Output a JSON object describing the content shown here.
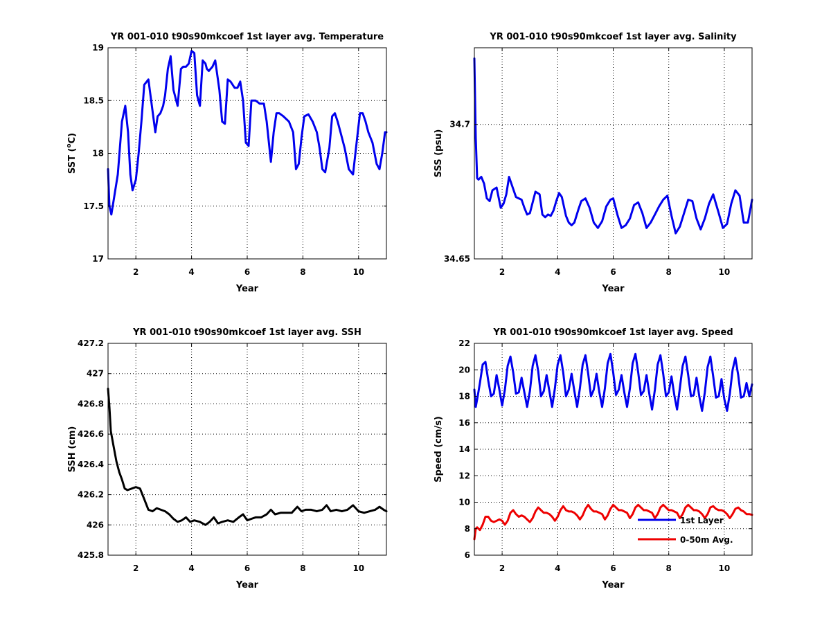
{
  "chart_data": [
    {
      "id": "temperature",
      "type": "line",
      "title": "YR 001-010 t90s90mkcoef 1st layer avg. Temperature",
      "xlabel": "Year",
      "ylabel": "SST (°C)",
      "ylabel_parts": {
        "pre": "SST (",
        "sup": "o",
        "post": "C)"
      },
      "xlim": [
        1,
        11
      ],
      "ylim": [
        17,
        19
      ],
      "xticks": [
        2,
        4,
        6,
        8,
        10
      ],
      "yticks": [
        17,
        17.5,
        18,
        18.5,
        19
      ],
      "ytick_labels": [
        "17",
        "17.5",
        "18",
        "18.5",
        "19"
      ],
      "grid": true,
      "series": [
        {
          "color": "#0000ee",
          "x": [
            1.0,
            1.05,
            1.12,
            1.2,
            1.35,
            1.5,
            1.62,
            1.72,
            1.8,
            1.88,
            2.0,
            2.1,
            2.2,
            2.3,
            2.45,
            2.6,
            2.7,
            2.78,
            2.88,
            2.98,
            3.05,
            3.15,
            3.25,
            3.35,
            3.5,
            3.62,
            3.7,
            3.8,
            3.9,
            4.0,
            4.1,
            4.2,
            4.3,
            4.4,
            4.5,
            4.55,
            4.62,
            4.75,
            4.85,
            5.0,
            5.1,
            5.2,
            5.3,
            5.4,
            5.55,
            5.65,
            5.75,
            5.85,
            5.95,
            6.05,
            6.15,
            6.3,
            6.45,
            6.6,
            6.7,
            6.85,
            6.95,
            7.05,
            7.15,
            7.3,
            7.5,
            7.65,
            7.75,
            7.85,
            7.95,
            8.05,
            8.2,
            8.35,
            8.5,
            8.6,
            8.7,
            8.8,
            8.95,
            9.05,
            9.15,
            9.25,
            9.35,
            9.5,
            9.65,
            9.8,
            9.95,
            10.05,
            10.15,
            10.25,
            10.35,
            10.5,
            10.65,
            10.75,
            10.85,
            10.95,
            11.0
          ],
          "y": [
            17.85,
            17.5,
            17.42,
            17.55,
            17.8,
            18.3,
            18.45,
            18.2,
            17.8,
            17.65,
            17.75,
            18.0,
            18.3,
            18.65,
            18.7,
            18.4,
            18.2,
            18.35,
            18.38,
            18.45,
            18.55,
            18.8,
            18.92,
            18.6,
            18.45,
            18.8,
            18.82,
            18.82,
            18.85,
            18.97,
            18.95,
            18.55,
            18.45,
            18.88,
            18.85,
            18.8,
            18.78,
            18.82,
            18.88,
            18.6,
            18.3,
            18.28,
            18.7,
            18.68,
            18.62,
            18.62,
            18.68,
            18.5,
            18.1,
            18.07,
            18.5,
            18.5,
            18.47,
            18.47,
            18.3,
            17.92,
            18.2,
            18.38,
            18.38,
            18.35,
            18.3,
            18.2,
            17.85,
            17.9,
            18.15,
            18.35,
            18.37,
            18.3,
            18.2,
            18.05,
            17.85,
            17.82,
            18.05,
            18.35,
            18.38,
            18.3,
            18.2,
            18.05,
            17.85,
            17.8,
            18.15,
            18.38,
            18.38,
            18.3,
            18.2,
            18.1,
            17.9,
            17.85,
            18.0,
            18.2,
            18.2
          ]
        }
      ]
    },
    {
      "id": "salinity",
      "type": "line",
      "title": "YR 001-010 t90s90mkcoef 1st layer avg. Salinity",
      "xlabel": "Year",
      "ylabel": "SSS (psu)",
      "xlim": [
        1,
        11
      ],
      "ylim": [
        34.65,
        34.7285
      ],
      "xticks": [
        2,
        4,
        6,
        8,
        10
      ],
      "yticks": [
        34.65,
        34.7
      ],
      "ytick_labels": [
        "34.65",
        "34.7"
      ],
      "grid": true,
      "series": [
        {
          "color": "#0000ee",
          "x": [
            1.0,
            1.05,
            1.1,
            1.15,
            1.25,
            1.35,
            1.45,
            1.55,
            1.65,
            1.8,
            1.95,
            2.05,
            2.15,
            2.25,
            2.35,
            2.5,
            2.6,
            2.7,
            2.8,
            2.9,
            3.0,
            3.1,
            3.2,
            3.35,
            3.45,
            3.55,
            3.65,
            3.75,
            3.85,
            3.95,
            4.05,
            4.15,
            4.3,
            4.4,
            4.5,
            4.6,
            4.75,
            4.85,
            5.0,
            5.15,
            5.3,
            5.45,
            5.6,
            5.75,
            5.9,
            6.0,
            6.15,
            6.3,
            6.45,
            6.6,
            6.75,
            6.9,
            7.05,
            7.2,
            7.35,
            7.5,
            7.65,
            7.8,
            7.95,
            8.1,
            8.25,
            8.4,
            8.55,
            8.7,
            8.85,
            9.0,
            9.15,
            9.3,
            9.45,
            9.6,
            9.8,
            9.95,
            10.1,
            10.25,
            10.4,
            10.55,
            10.7,
            10.85,
            11.0
          ],
          "y": [
            34.7245,
            34.695,
            34.68,
            34.6795,
            34.6805,
            34.678,
            34.6725,
            34.6715,
            34.6755,
            34.6765,
            34.669,
            34.6705,
            34.674,
            34.6805,
            34.6775,
            34.673,
            34.6725,
            34.672,
            34.669,
            34.6665,
            34.667,
            34.671,
            34.675,
            34.674,
            34.6665,
            34.6655,
            34.6665,
            34.666,
            34.668,
            34.6715,
            34.6745,
            34.673,
            34.666,
            34.6635,
            34.6625,
            34.6635,
            34.6685,
            34.6715,
            34.6725,
            34.669,
            34.6635,
            34.6615,
            34.664,
            34.6695,
            34.672,
            34.6725,
            34.6665,
            34.6615,
            34.6625,
            34.665,
            34.67,
            34.671,
            34.667,
            34.6615,
            34.6635,
            34.6665,
            34.6695,
            34.672,
            34.6735,
            34.666,
            34.6595,
            34.662,
            34.667,
            34.672,
            34.6715,
            34.665,
            34.661,
            34.665,
            34.6705,
            34.674,
            34.667,
            34.6615,
            34.663,
            34.6705,
            34.6755,
            34.6735,
            34.6635,
            34.6635,
            34.672
          ]
        }
      ]
    },
    {
      "id": "ssh",
      "type": "line",
      "title": "YR 001-010 t90s90mkcoef 1st layer avg. SSH",
      "xlabel": "Year",
      "ylabel": "SSH (cm)",
      "xlim": [
        1,
        11
      ],
      "ylim": [
        425.8,
        427.2
      ],
      "xticks": [
        2,
        4,
        6,
        8,
        10
      ],
      "yticks": [
        425.8,
        426,
        426.2,
        426.4,
        426.6,
        426.8,
        427,
        427.2
      ],
      "ytick_labels": [
        "425.8",
        "426",
        "426.2",
        "426.4",
        "426.6",
        "426.8",
        "427",
        "427.2"
      ],
      "grid": true,
      "series": [
        {
          "color": "#000000",
          "x": [
            1.0,
            1.05,
            1.1,
            1.2,
            1.3,
            1.4,
            1.5,
            1.6,
            1.7,
            1.85,
            2.0,
            2.15,
            2.3,
            2.45,
            2.6,
            2.75,
            2.9,
            3.05,
            3.2,
            3.35,
            3.5,
            3.65,
            3.8,
            3.95,
            4.1,
            4.3,
            4.5,
            4.65,
            4.8,
            4.95,
            5.1,
            5.3,
            5.5,
            5.7,
            5.85,
            6.0,
            6.15,
            6.3,
            6.5,
            6.7,
            6.85,
            7.0,
            7.2,
            7.4,
            7.6,
            7.8,
            7.95,
            8.1,
            8.3,
            8.5,
            8.7,
            8.85,
            9.0,
            9.2,
            9.4,
            9.6,
            9.8,
            10.0,
            10.2,
            10.4,
            10.6,
            10.75,
            10.9,
            11.0
          ],
          "y": [
            426.9,
            426.78,
            426.62,
            426.52,
            426.42,
            426.35,
            426.3,
            426.24,
            426.23,
            426.24,
            426.25,
            426.24,
            426.17,
            426.1,
            426.09,
            426.11,
            426.1,
            426.09,
            426.07,
            426.04,
            426.02,
            426.03,
            426.05,
            426.02,
            426.03,
            426.02,
            426.0,
            426.02,
            426.05,
            426.01,
            426.02,
            426.03,
            426.02,
            426.05,
            426.07,
            426.03,
            426.04,
            426.05,
            426.05,
            426.07,
            426.1,
            426.07,
            426.08,
            426.08,
            426.08,
            426.12,
            426.09,
            426.1,
            426.1,
            426.09,
            426.1,
            426.13,
            426.09,
            426.1,
            426.09,
            426.1,
            426.13,
            426.09,
            426.08,
            426.09,
            426.1,
            426.12,
            426.1,
            426.09
          ]
        }
      ]
    },
    {
      "id": "speed",
      "type": "line",
      "title": "YR 001-010 t90s90mkcoef 1st layer avg. Speed",
      "xlabel": "Year",
      "ylabel": "Speed (cm/s)",
      "xlim": [
        1,
        11
      ],
      "ylim": [
        6,
        22
      ],
      "xticks": [
        2,
        4,
        6,
        8,
        10
      ],
      "yticks": [
        6,
        8,
        10,
        12,
        14,
        16,
        18,
        20,
        22
      ],
      "ytick_labels": [
        "6",
        "8",
        "10",
        "12",
        "14",
        "16",
        "18",
        "20",
        "22"
      ],
      "grid": true,
      "legend_placement": "lower-right",
      "series": [
        {
          "name": "1st Layer",
          "color": "#0000ee",
          "x": [
            1.0,
            1.05,
            1.12,
            1.2,
            1.3,
            1.4,
            1.5,
            1.6,
            1.7,
            1.8,
            1.9,
            2.0,
            2.1,
            2.2,
            2.3,
            2.4,
            2.5,
            2.6,
            2.7,
            2.8,
            2.9,
            3.0,
            3.1,
            3.2,
            3.3,
            3.4,
            3.5,
            3.6,
            3.7,
            3.8,
            3.9,
            4.0,
            4.1,
            4.2,
            4.3,
            4.4,
            4.5,
            4.6,
            4.7,
            4.8,
            4.9,
            5.0,
            5.1,
            5.2,
            5.3,
            5.4,
            5.5,
            5.6,
            5.7,
            5.8,
            5.9,
            6.0,
            6.1,
            6.2,
            6.3,
            6.4,
            6.5,
            6.6,
            6.7,
            6.8,
            6.9,
            7.0,
            7.1,
            7.2,
            7.3,
            7.4,
            7.5,
            7.6,
            7.7,
            7.8,
            7.9,
            8.0,
            8.1,
            8.2,
            8.3,
            8.4,
            8.5,
            8.6,
            8.7,
            8.8,
            8.9,
            9.0,
            9.1,
            9.2,
            9.3,
            9.4,
            9.5,
            9.6,
            9.7,
            9.8,
            9.9,
            10.0,
            10.1,
            10.2,
            10.3,
            10.4,
            10.5,
            10.6,
            10.7,
            10.8,
            10.9,
            11.0
          ],
          "y": [
            18.5,
            17.2,
            18.0,
            19.0,
            20.4,
            20.6,
            19.2,
            18.0,
            18.2,
            19.6,
            18.5,
            17.3,
            18.5,
            20.3,
            21.0,
            19.8,
            18.2,
            18.3,
            19.4,
            18.3,
            17.2,
            18.4,
            20.3,
            21.1,
            19.9,
            18.0,
            18.4,
            19.6,
            18.4,
            17.2,
            18.6,
            20.4,
            21.1,
            19.8,
            18.0,
            18.5,
            19.7,
            18.4,
            17.2,
            18.6,
            20.4,
            21.1,
            19.7,
            18.0,
            18.5,
            19.7,
            18.3,
            17.2,
            18.6,
            20.5,
            21.2,
            19.8,
            18.1,
            18.5,
            19.6,
            18.3,
            17.2,
            18.6,
            20.5,
            21.2,
            19.8,
            18.1,
            18.4,
            19.6,
            18.2,
            17.0,
            18.5,
            20.4,
            21.1,
            19.7,
            18.0,
            18.3,
            19.5,
            18.1,
            17.0,
            18.6,
            20.3,
            21.0,
            19.6,
            18.0,
            18.1,
            19.4,
            18.0,
            16.9,
            18.3,
            20.2,
            21.0,
            19.5,
            17.9,
            18.0,
            19.3,
            17.8,
            16.9,
            18.2,
            20.0,
            20.9,
            19.6,
            17.9,
            18.0,
            19.0,
            18.0,
            18.9
          ]
        },
        {
          "name": "0-50m Avg.",
          "color": "#ee0000",
          "x": [
            1.0,
            1.05,
            1.1,
            1.2,
            1.3,
            1.4,
            1.5,
            1.6,
            1.7,
            1.8,
            1.9,
            2.0,
            2.1,
            2.2,
            2.3,
            2.4,
            2.5,
            2.6,
            2.7,
            2.8,
            2.9,
            3.0,
            3.1,
            3.2,
            3.3,
            3.4,
            3.5,
            3.6,
            3.7,
            3.8,
            3.9,
            4.0,
            4.1,
            4.2,
            4.3,
            4.4,
            4.5,
            4.6,
            4.7,
            4.8,
            4.9,
            5.0,
            5.1,
            5.2,
            5.3,
            5.4,
            5.5,
            5.6,
            5.7,
            5.8,
            5.9,
            6.0,
            6.1,
            6.2,
            6.3,
            6.4,
            6.5,
            6.6,
            6.7,
            6.8,
            6.9,
            7.0,
            7.1,
            7.2,
            7.3,
            7.4,
            7.5,
            7.6,
            7.7,
            7.8,
            7.9,
            8.0,
            8.1,
            8.2,
            8.3,
            8.4,
            8.5,
            8.6,
            8.7,
            8.8,
            8.9,
            9.0,
            9.1,
            9.2,
            9.3,
            9.4,
            9.5,
            9.6,
            9.7,
            9.8,
            9.9,
            10.0,
            10.1,
            10.2,
            10.3,
            10.4,
            10.5,
            10.6,
            10.7,
            10.8,
            10.9,
            11.0
          ],
          "y": [
            7.2,
            8.0,
            8.1,
            7.9,
            8.3,
            8.9,
            8.9,
            8.6,
            8.5,
            8.6,
            8.7,
            8.6,
            8.3,
            8.6,
            9.2,
            9.4,
            9.1,
            8.9,
            9.0,
            8.9,
            8.7,
            8.5,
            8.8,
            9.3,
            9.6,
            9.4,
            9.2,
            9.2,
            9.1,
            8.9,
            8.6,
            8.9,
            9.4,
            9.7,
            9.4,
            9.3,
            9.3,
            9.2,
            9.0,
            8.7,
            9.0,
            9.5,
            9.8,
            9.5,
            9.3,
            9.3,
            9.2,
            9.1,
            8.7,
            9.0,
            9.5,
            9.8,
            9.6,
            9.4,
            9.4,
            9.3,
            9.2,
            8.8,
            9.1,
            9.6,
            9.8,
            9.6,
            9.4,
            9.4,
            9.3,
            9.2,
            8.8,
            9.1,
            9.6,
            9.8,
            9.6,
            9.4,
            9.4,
            9.3,
            9.2,
            8.8,
            9.1,
            9.6,
            9.8,
            9.6,
            9.4,
            9.4,
            9.3,
            9.1,
            8.8,
            9.1,
            9.6,
            9.7,
            9.5,
            9.4,
            9.4,
            9.3,
            9.1,
            8.8,
            9.1,
            9.5,
            9.6,
            9.4,
            9.3,
            9.1,
            9.1,
            9.05
          ]
        }
      ]
    }
  ]
}
